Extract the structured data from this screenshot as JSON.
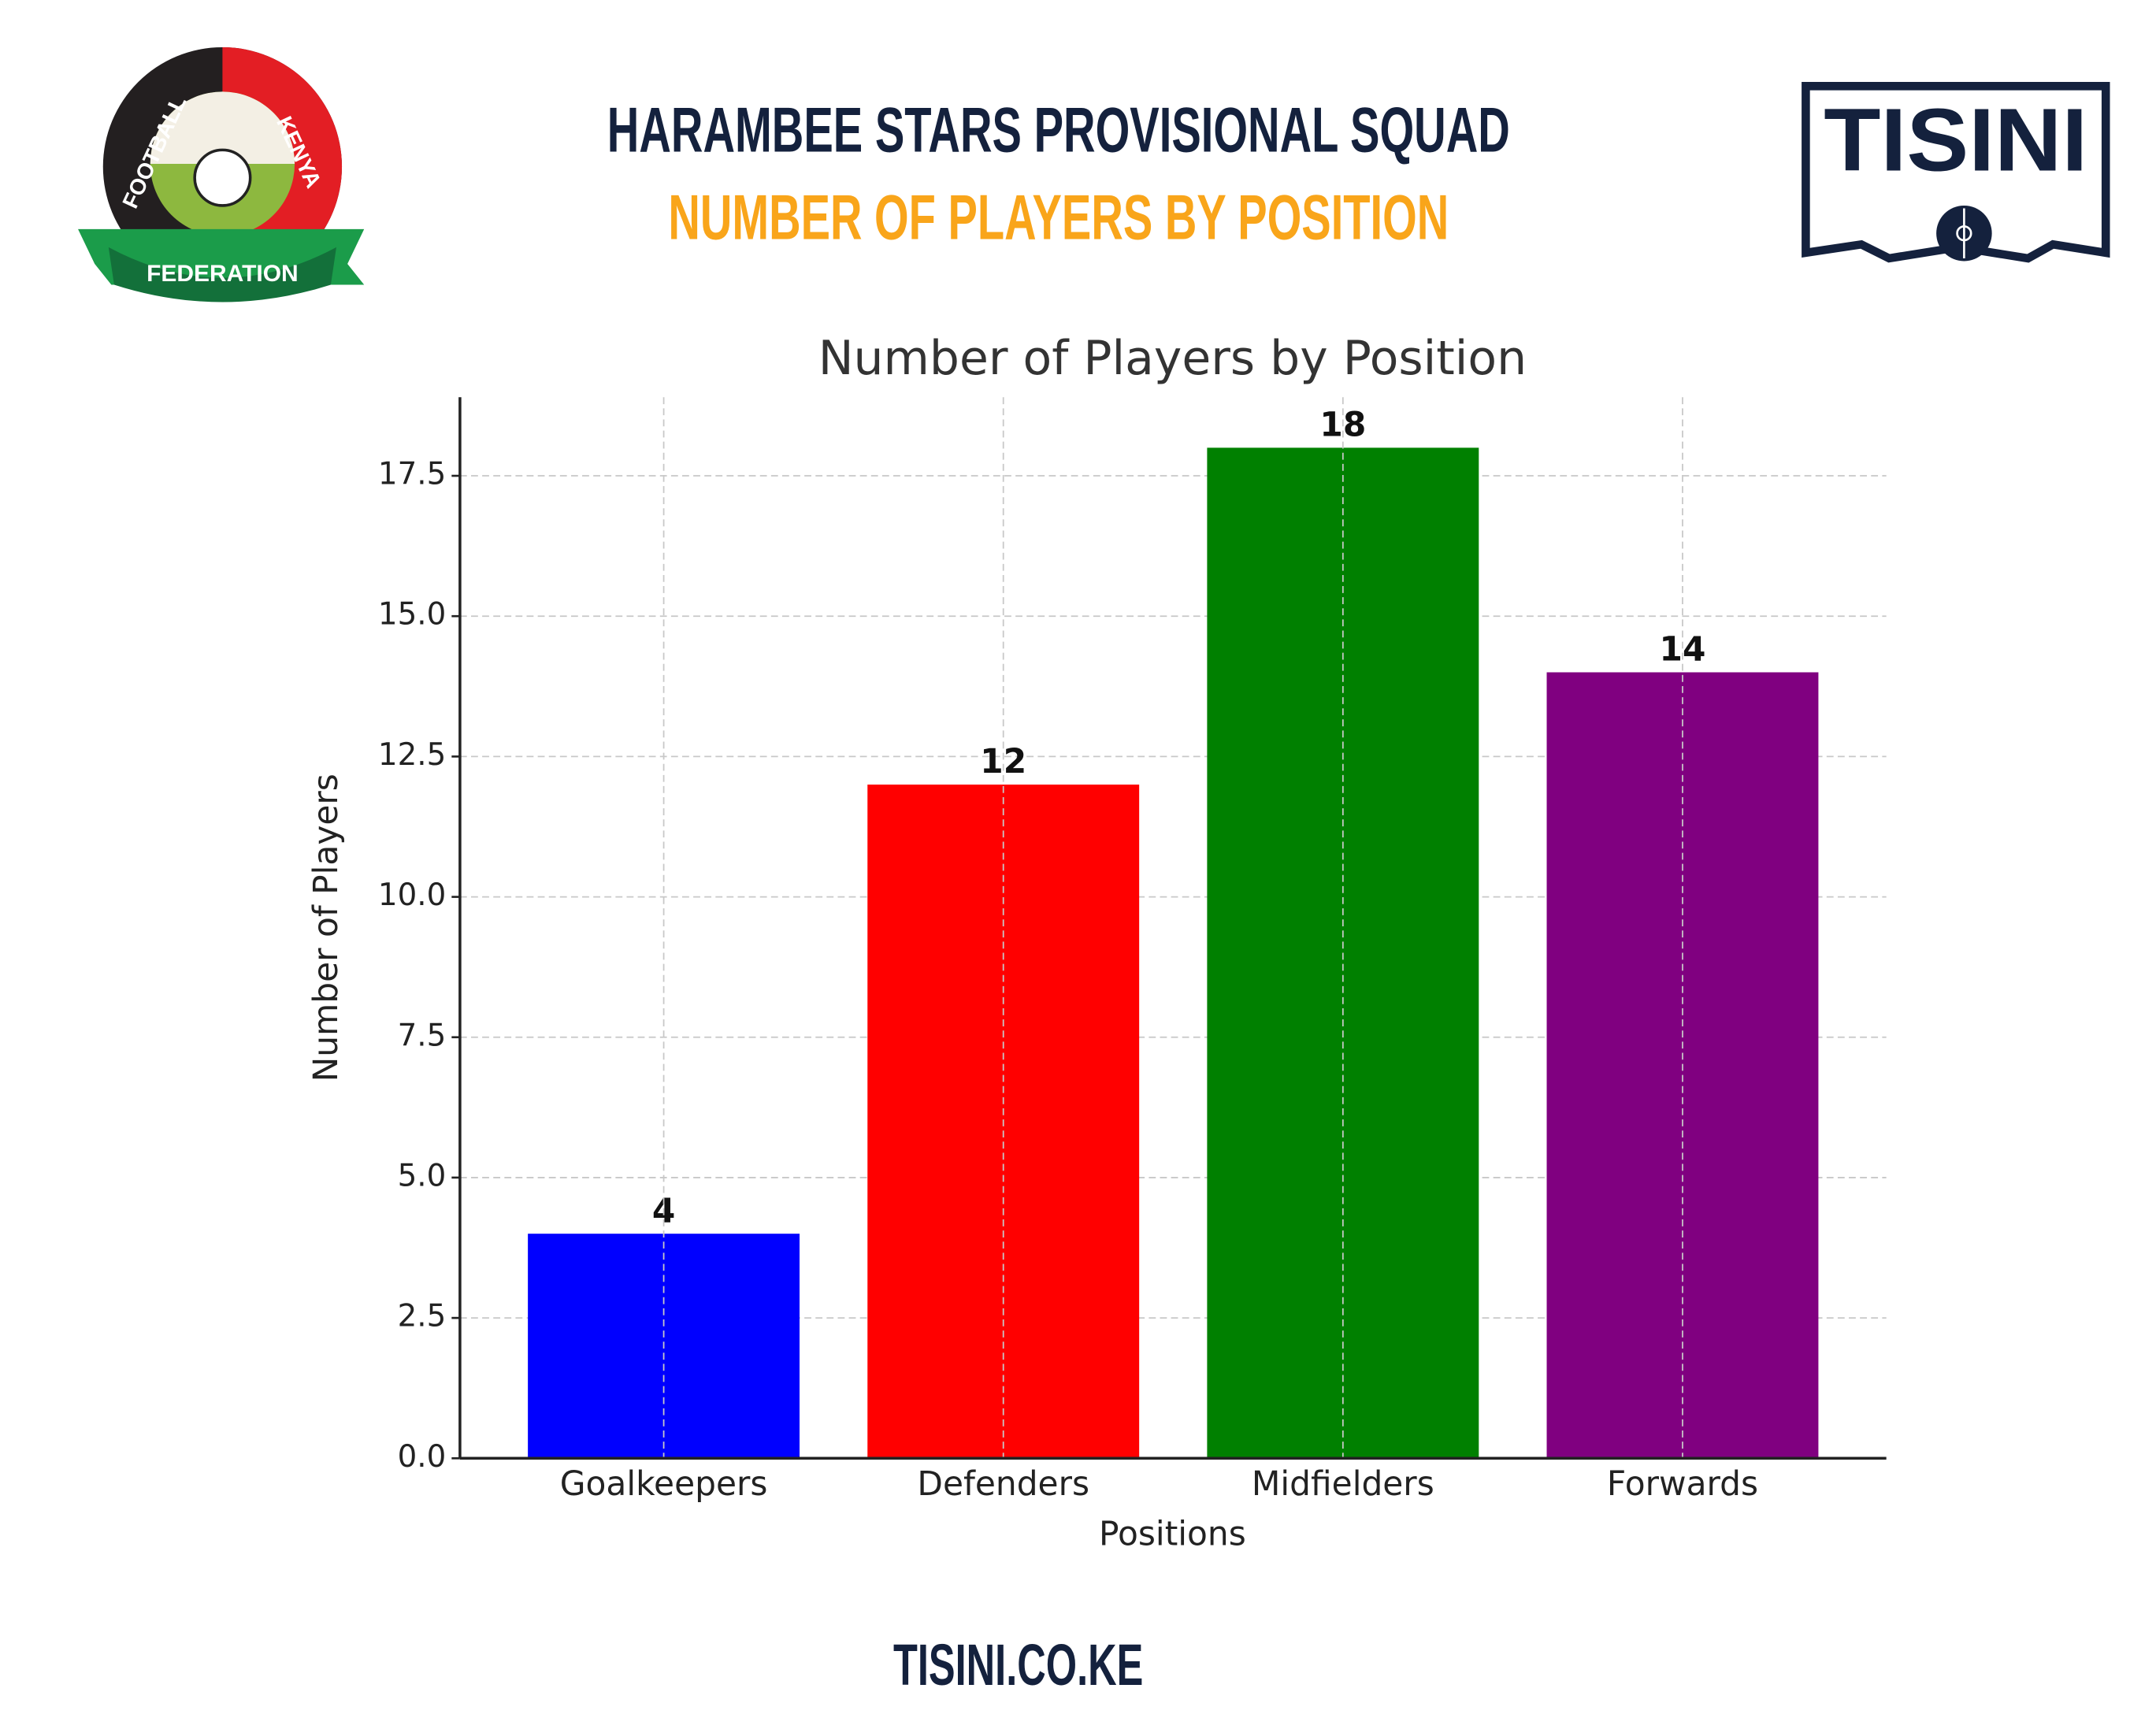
{
  "header": {
    "title": "HARAMBEE STARS PROVISIONAL SQUAD",
    "subtitle": "NUMBER OF PLAYERS BY POSITION"
  },
  "logos": {
    "fkf": {
      "left_arc": "FOOTBALL",
      "right_arc": "KENYA",
      "banner": "FEDERATION"
    },
    "tisini": "TISINI"
  },
  "chart_data": {
    "type": "bar",
    "title": "Number of Players by Position",
    "x_label": "Positions",
    "y_label": "Number of Players",
    "categories": [
      "Goalkeepers",
      "Defenders",
      "Midfielders",
      "Forwards"
    ],
    "values": [
      4,
      12,
      18,
      14
    ],
    "colors": [
      "#0000ff",
      "#ff0000",
      "#008000",
      "#800080"
    ],
    "ylim": [
      0,
      18.9
    ],
    "yticks": [
      {
        "value": 0,
        "label": "0.0"
      },
      2.5,
      {
        "value": 5,
        "label": "5.0"
      },
      7.5,
      {
        "value": 10,
        "label": "10.0"
      },
      12.5,
      {
        "value": 15,
        "label": "15.0"
      },
      17.5
    ],
    "grid": true
  },
  "footer": "TISINI.CO.KE"
}
